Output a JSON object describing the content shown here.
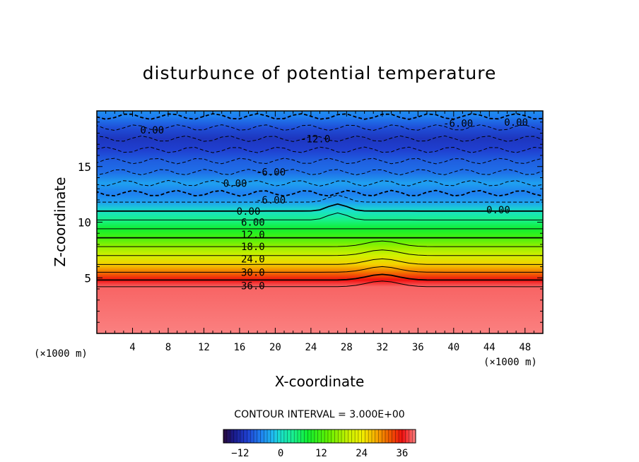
{
  "chart_data": {
    "type": "heatmap",
    "title": "disturbunce of potential temperature",
    "xlabel": "X-coordinate",
    "ylabel": "Z-coordinate",
    "x_unit": "(×1000 m)",
    "z_unit": "(×1000 m)",
    "xlim": [
      0,
      50
    ],
    "ylim": [
      0,
      20
    ],
    "x_ticks": [
      4,
      8,
      12,
      16,
      20,
      24,
      28,
      32,
      36,
      40,
      44,
      48
    ],
    "y_ticks": [
      5,
      10,
      15
    ],
    "contour_interval_text": "CONTOUR INTERVAL = 3.000E+00",
    "contour_interval": 3.0,
    "contour_labels": [
      {
        "text": "0.00",
        "x": 6.2,
        "z": 18.3
      },
      {
        "text": "-6.00",
        "x": 40.5,
        "z": 18.9
      },
      {
        "text": "0.00",
        "x": 47.0,
        "z": 19.0
      },
      {
        "text": "-12.0",
        "x": 24.5,
        "z": 17.5
      },
      {
        "text": "-6.00",
        "x": 19.5,
        "z": 14.5
      },
      {
        "text": "0.00",
        "x": 15.5,
        "z": 13.5
      },
      {
        "text": "-6.00",
        "x": 19.5,
        "z": 12.0
      },
      {
        "text": "0.00",
        "x": 17.0,
        "z": 11.0
      },
      {
        "text": "0.00",
        "x": 45.0,
        "z": 11.1
      },
      {
        "text": "6.00",
        "x": 17.5,
        "z": 10.0
      },
      {
        "text": "12.0",
        "x": 17.5,
        "z": 8.9
      },
      {
        "text": "18.0",
        "x": 17.5,
        "z": 7.8
      },
      {
        "text": "24.0",
        "x": 17.5,
        "z": 6.7
      },
      {
        "text": "30.0",
        "x": 17.5,
        "z": 5.5
      },
      {
        "text": "36.0",
        "x": 17.5,
        "z": 4.3
      }
    ],
    "layers": [
      {
        "z": 0.0,
        "value": 40
      },
      {
        "z": 4.2,
        "value": 39
      },
      {
        "z": 4.8,
        "value": 36
      },
      {
        "z": 5.5,
        "value": 31
      },
      {
        "z": 6.2,
        "value": 26
      },
      {
        "z": 7.0,
        "value": 21
      },
      {
        "z": 7.8,
        "value": 17
      },
      {
        "z": 8.6,
        "value": 12
      },
      {
        "z": 9.4,
        "value": 8
      },
      {
        "z": 10.2,
        "value": 4
      },
      {
        "z": 11.0,
        "value": 0
      },
      {
        "z": 11.8,
        "value": -4
      },
      {
        "z": 12.6,
        "value": -6
      },
      {
        "z": 13.5,
        "value": -4
      },
      {
        "z": 14.5,
        "value": -7
      },
      {
        "z": 15.5,
        "value": -8
      },
      {
        "z": 16.5,
        "value": -10
      },
      {
        "z": 17.5,
        "value": -11
      },
      {
        "z": 18.5,
        "value": -9
      },
      {
        "z": 19.5,
        "value": -6
      },
      {
        "z": 20.0,
        "value": -5
      }
    ],
    "colorbar": {
      "min": -17,
      "max": 40,
      "ticks": [
        -12,
        0,
        12,
        24,
        36
      ],
      "stops": [
        {
          "value": -17,
          "color": "#2a0a3a"
        },
        {
          "value": -14,
          "color": "#1a1a8a"
        },
        {
          "value": -10,
          "color": "#1f3fd0"
        },
        {
          "value": -6,
          "color": "#1f7ff0"
        },
        {
          "value": -2,
          "color": "#1fc0f0"
        },
        {
          "value": 0,
          "color": "#19e0c8"
        },
        {
          "value": 4,
          "color": "#19f08a"
        },
        {
          "value": 8,
          "color": "#10ef30"
        },
        {
          "value": 14,
          "color": "#60f000"
        },
        {
          "value": 20,
          "color": "#c8f000"
        },
        {
          "value": 24,
          "color": "#f0f000"
        },
        {
          "value": 28,
          "color": "#f7b000"
        },
        {
          "value": 32,
          "color": "#f06000"
        },
        {
          "value": 36,
          "color": "#f01010"
        },
        {
          "value": 40,
          "color": "#fa8080"
        }
      ]
    }
  }
}
